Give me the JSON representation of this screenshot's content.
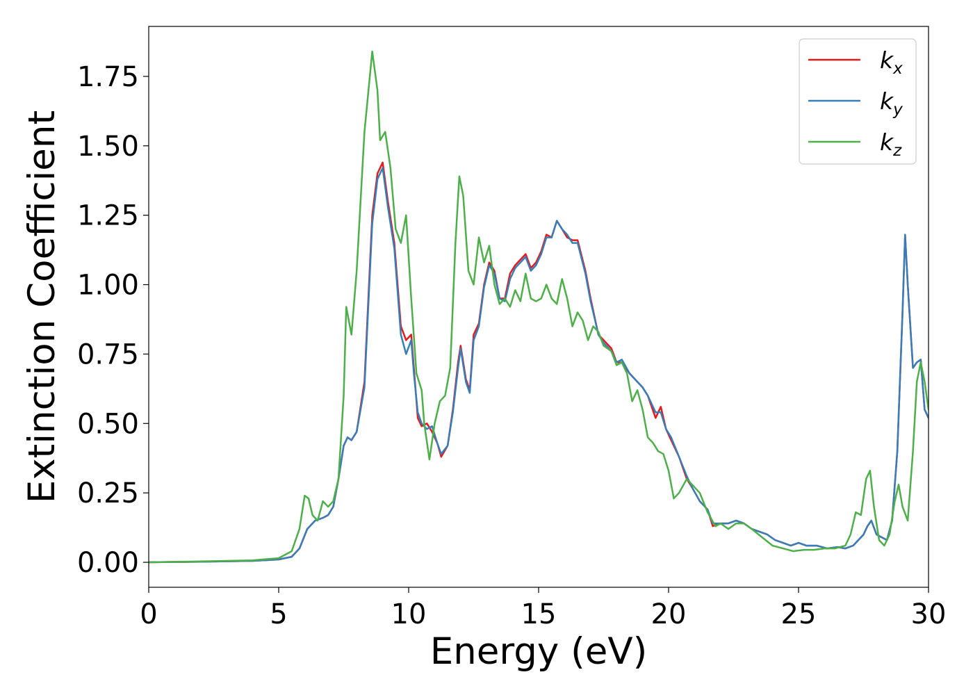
{
  "chart_data": {
    "type": "line",
    "title": "",
    "xlabel": "Energy (eV)",
    "ylabel": "Extinction Coefficient",
    "xlim": [
      0,
      30
    ],
    "ylim": [
      -0.09,
      1.93
    ],
    "xticks": [
      0,
      5,
      10,
      15,
      20,
      25,
      30
    ],
    "xtick_labels": [
      "0",
      "5",
      "10",
      "15",
      "20",
      "25",
      "30"
    ],
    "yticks": [
      0.0,
      0.25,
      0.5,
      0.75,
      1.0,
      1.25,
      1.5,
      1.75
    ],
    "ytick_labels": [
      "0.00",
      "0.25",
      "0.50",
      "0.75",
      "1.00",
      "1.25",
      "1.50",
      "1.75"
    ],
    "grid": false,
    "legend_position": "top-right",
    "series": [
      {
        "name": "k_x",
        "legend_base": "k",
        "legend_sub": "x",
        "color": "#e41a1c",
        "x": [
          0,
          2,
          4,
          5,
          5.5,
          5.8,
          6.1,
          6.4,
          6.7,
          6.9,
          7.1,
          7.3,
          7.5,
          7.65,
          7.8,
          8.0,
          8.3,
          8.6,
          8.8,
          9.0,
          9.2,
          9.45,
          9.7,
          9.9,
          10.1,
          10.2,
          10.35,
          10.5,
          10.7,
          10.9,
          11.1,
          11.25,
          11.5,
          11.7,
          11.9,
          12.0,
          12.2,
          12.35,
          12.5,
          12.7,
          12.9,
          13.1,
          13.3,
          13.5,
          13.7,
          13.9,
          14.1,
          14.3,
          14.5,
          14.7,
          14.9,
          15.1,
          15.3,
          15.5,
          15.7,
          15.9,
          16.1,
          16.3,
          16.5,
          16.8,
          17.0,
          17.3,
          17.5,
          17.8,
          18.0,
          18.2,
          18.5,
          18.8,
          19.0,
          19.2,
          19.5,
          19.7,
          19.9,
          20.1,
          20.4,
          20.7,
          20.9,
          21.2,
          21.5,
          21.7,
          22.0,
          22.3,
          22.6,
          22.9,
          23.2,
          23.5,
          23.8,
          24.1,
          24.4,
          24.7,
          25.0,
          25.3,
          25.7,
          26.1,
          26.5,
          26.8,
          27.1,
          27.3,
          27.5,
          27.65,
          27.8,
          28.0,
          28.2,
          28.4,
          28.6,
          28.8,
          29.0,
          29.1,
          29.2,
          29.4,
          29.55,
          29.7,
          29.85,
          30.0
        ],
        "y": [
          0,
          0.002,
          0.005,
          0.01,
          0.02,
          0.05,
          0.12,
          0.15,
          0.16,
          0.17,
          0.2,
          0.3,
          0.42,
          0.45,
          0.44,
          0.47,
          0.65,
          1.25,
          1.4,
          1.44,
          1.3,
          1.15,
          0.85,
          0.8,
          0.82,
          0.7,
          0.52,
          0.49,
          0.5,
          0.47,
          0.43,
          0.38,
          0.42,
          0.55,
          0.72,
          0.78,
          0.66,
          0.62,
          0.82,
          0.86,
          1.0,
          1.08,
          1.05,
          0.95,
          0.95,
          1.04,
          1.07,
          1.09,
          1.11,
          1.06,
          1.08,
          1.12,
          1.18,
          1.17,
          1.23,
          1.2,
          1.17,
          1.16,
          1.16,
          1.05,
          0.95,
          0.82,
          0.8,
          0.77,
          0.72,
          0.72,
          0.68,
          0.65,
          0.63,
          0.6,
          0.52,
          0.56,
          0.48,
          0.44,
          0.38,
          0.3,
          0.27,
          0.22,
          0.19,
          0.13,
          0.14,
          0.14,
          0.15,
          0.14,
          0.12,
          0.11,
          0.1,
          0.08,
          0.07,
          0.06,
          0.07,
          0.06,
          0.06,
          0.05,
          0.055,
          0.05,
          0.06,
          0.08,
          0.1,
          0.13,
          0.15,
          0.1,
          0.09,
          0.08,
          0.15,
          0.4,
          0.9,
          1.18,
          1.0,
          0.7,
          0.72,
          0.73,
          0.55,
          0.52
        ]
      },
      {
        "name": "k_y",
        "legend_base": "k",
        "legend_sub": "y",
        "color": "#377eb8",
        "x": [
          0,
          2,
          4,
          5,
          5.5,
          5.8,
          6.1,
          6.4,
          6.7,
          6.9,
          7.1,
          7.3,
          7.5,
          7.65,
          7.8,
          8.0,
          8.3,
          8.6,
          8.8,
          9.0,
          9.2,
          9.45,
          9.7,
          9.9,
          10.1,
          10.2,
          10.35,
          10.5,
          10.7,
          10.9,
          11.1,
          11.25,
          11.5,
          11.7,
          11.9,
          12.0,
          12.2,
          12.35,
          12.5,
          12.7,
          12.9,
          13.1,
          13.3,
          13.5,
          13.7,
          13.9,
          14.1,
          14.3,
          14.5,
          14.7,
          14.9,
          15.1,
          15.3,
          15.5,
          15.7,
          15.9,
          16.1,
          16.3,
          16.5,
          16.8,
          17.0,
          17.3,
          17.5,
          17.8,
          18.0,
          18.2,
          18.5,
          18.8,
          19.0,
          19.2,
          19.5,
          19.7,
          19.9,
          20.1,
          20.4,
          20.7,
          20.9,
          21.2,
          21.5,
          21.7,
          22.0,
          22.3,
          22.6,
          22.9,
          23.2,
          23.5,
          23.8,
          24.1,
          24.4,
          24.7,
          25.0,
          25.3,
          25.7,
          26.1,
          26.5,
          26.8,
          27.1,
          27.3,
          27.5,
          27.65,
          27.8,
          28.0,
          28.2,
          28.4,
          28.6,
          28.8,
          29.0,
          29.1,
          29.2,
          29.4,
          29.55,
          29.7,
          29.85,
          30.0
        ],
        "y": [
          0,
          0.002,
          0.005,
          0.01,
          0.02,
          0.05,
          0.12,
          0.15,
          0.16,
          0.17,
          0.2,
          0.3,
          0.42,
          0.45,
          0.44,
          0.47,
          0.63,
          1.22,
          1.38,
          1.42,
          1.28,
          1.13,
          0.82,
          0.75,
          0.8,
          0.68,
          0.54,
          0.5,
          0.48,
          0.49,
          0.43,
          0.39,
          0.42,
          0.54,
          0.7,
          0.77,
          0.65,
          0.61,
          0.8,
          0.85,
          0.99,
          1.07,
          1.04,
          0.95,
          0.94,
          1.02,
          1.06,
          1.08,
          1.1,
          1.05,
          1.07,
          1.11,
          1.17,
          1.17,
          1.23,
          1.2,
          1.18,
          1.15,
          1.15,
          1.04,
          0.94,
          0.82,
          0.79,
          0.76,
          0.72,
          0.73,
          0.68,
          0.65,
          0.63,
          0.6,
          0.54,
          0.54,
          0.48,
          0.45,
          0.38,
          0.31,
          0.27,
          0.22,
          0.19,
          0.14,
          0.14,
          0.14,
          0.15,
          0.14,
          0.12,
          0.11,
          0.1,
          0.08,
          0.07,
          0.06,
          0.07,
          0.06,
          0.06,
          0.05,
          0.055,
          0.05,
          0.06,
          0.08,
          0.1,
          0.13,
          0.15,
          0.1,
          0.09,
          0.08,
          0.15,
          0.4,
          0.9,
          1.18,
          1.0,
          0.7,
          0.72,
          0.73,
          0.55,
          0.52
        ]
      },
      {
        "name": "k_z",
        "legend_base": "k",
        "legend_sub": "z",
        "color": "#4daf4a",
        "x": [
          0,
          2,
          4,
          5,
          5.5,
          5.8,
          6.0,
          6.15,
          6.3,
          6.5,
          6.7,
          6.9,
          7.1,
          7.3,
          7.5,
          7.6,
          7.8,
          8.0,
          8.3,
          8.6,
          8.8,
          8.9,
          9.1,
          9.3,
          9.5,
          9.7,
          9.9,
          10.1,
          10.3,
          10.5,
          10.6,
          10.8,
          11.0,
          11.2,
          11.4,
          11.6,
          11.8,
          11.95,
          12.1,
          12.3,
          12.5,
          12.7,
          12.9,
          13.1,
          13.3,
          13.5,
          13.7,
          13.9,
          14.1,
          14.3,
          14.5,
          14.7,
          14.9,
          15.1,
          15.3,
          15.5,
          15.7,
          15.9,
          16.1,
          16.3,
          16.5,
          16.7,
          16.9,
          17.1,
          17.3,
          17.5,
          17.8,
          18.0,
          18.2,
          18.4,
          18.6,
          18.8,
          19.0,
          19.2,
          19.4,
          19.6,
          19.8,
          20.0,
          20.2,
          20.4,
          20.7,
          20.9,
          21.2,
          21.5,
          21.8,
          22.0,
          22.3,
          22.6,
          22.9,
          23.2,
          23.6,
          24.0,
          24.4,
          24.8,
          25.2,
          25.6,
          26.0,
          26.4,
          26.8,
          27.0,
          27.2,
          27.4,
          27.6,
          27.75,
          27.9,
          28.1,
          28.3,
          28.5,
          28.7,
          28.85,
          29.0,
          29.2,
          29.4,
          29.55,
          29.7,
          29.85,
          30.0
        ],
        "y": [
          0,
          0.003,
          0.007,
          0.015,
          0.04,
          0.12,
          0.24,
          0.23,
          0.17,
          0.15,
          0.22,
          0.2,
          0.22,
          0.3,
          0.6,
          0.92,
          0.82,
          1.05,
          1.55,
          1.84,
          1.7,
          1.52,
          1.55,
          1.42,
          1.2,
          1.15,
          1.25,
          0.95,
          0.68,
          0.62,
          0.5,
          0.37,
          0.5,
          0.58,
          0.6,
          0.7,
          1.15,
          1.39,
          1.32,
          1.05,
          1.0,
          1.17,
          1.08,
          1.14,
          1.0,
          0.93,
          0.95,
          0.92,
          0.98,
          0.94,
          1.04,
          0.95,
          0.94,
          0.95,
          1.0,
          0.95,
          0.93,
          1.02,
          0.95,
          0.85,
          0.9,
          0.87,
          0.8,
          0.85,
          0.83,
          0.78,
          0.76,
          0.71,
          0.72,
          0.68,
          0.58,
          0.62,
          0.55,
          0.45,
          0.43,
          0.4,
          0.39,
          0.33,
          0.23,
          0.25,
          0.3,
          0.28,
          0.25,
          0.18,
          0.13,
          0.14,
          0.12,
          0.14,
          0.14,
          0.12,
          0.09,
          0.06,
          0.05,
          0.04,
          0.045,
          0.045,
          0.05,
          0.05,
          0.06,
          0.1,
          0.18,
          0.17,
          0.3,
          0.33,
          0.2,
          0.08,
          0.06,
          0.1,
          0.22,
          0.28,
          0.2,
          0.15,
          0.4,
          0.65,
          0.72,
          0.65,
          0.55
        ]
      }
    ]
  }
}
